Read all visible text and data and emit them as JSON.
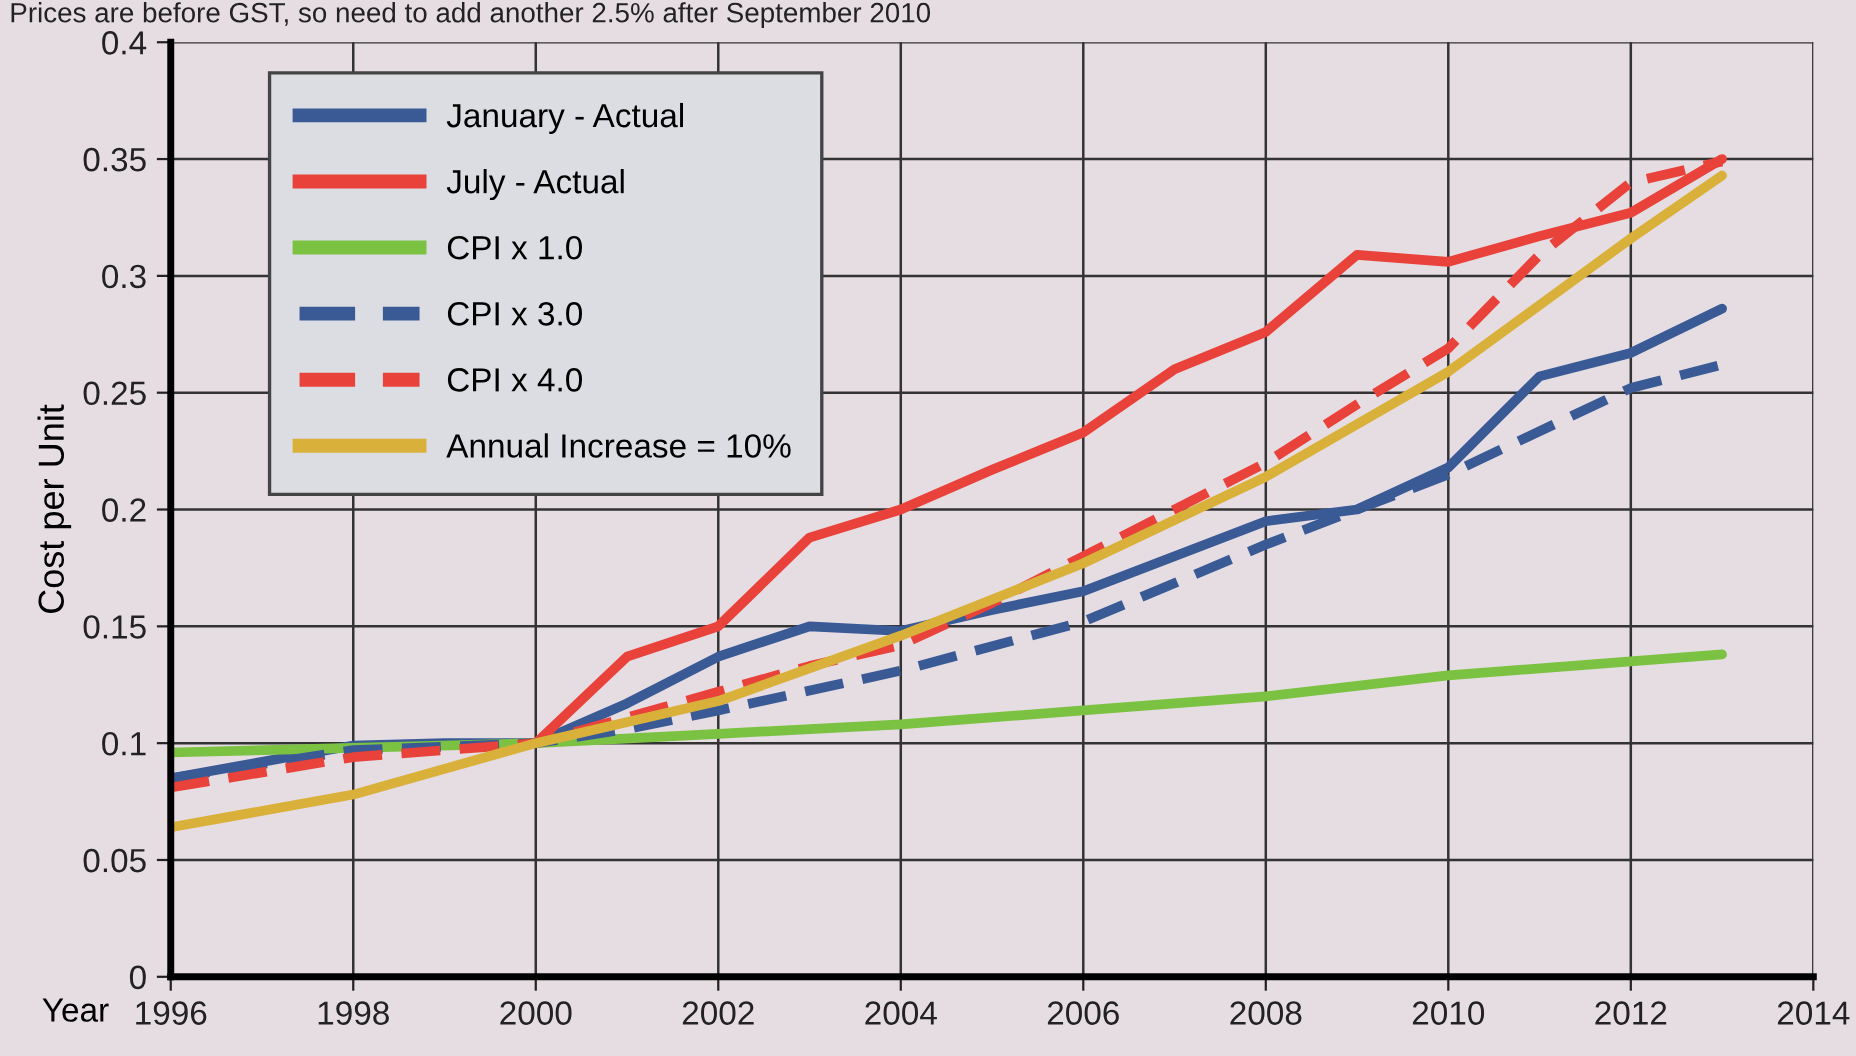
{
  "chart_data": {
    "type": "line",
    "xlabel": "Year",
    "ylabel": "Cost per Unit",
    "annotations": [
      "Prices are before GST, so need to add another 2.5% after September 2010"
    ],
    "xlim": [
      1996,
      2014
    ],
    "xticks": [
      1996,
      1998,
      2000,
      2002,
      2004,
      2006,
      2008,
      2010,
      2012,
      2014
    ],
    "ylim": [
      0,
      0.4
    ],
    "yticks": [
      0,
      0.05,
      0.1,
      0.15,
      0.2,
      0.25,
      0.3,
      0.35,
      0.4
    ],
    "grid": true,
    "legend": "top left",
    "marker": "none",
    "series": [
      {
        "name": "January - Actual",
        "color": "#3a5a95",
        "line_style": "solid",
        "x": [
          1996,
          1997,
          1998,
          1999,
          2000,
          2001,
          2002,
          2003,
          2004,
          2005,
          2006,
          2007,
          2008,
          2009,
          2010,
          2011,
          2012,
          2013
        ],
        "values": [
          0.085,
          0.092,
          0.099,
          0.1,
          0.1,
          0.117,
          0.137,
          0.15,
          0.148,
          0.157,
          0.165,
          0.18,
          0.195,
          0.2,
          0.218,
          0.257,
          0.267,
          0.286
        ]
      },
      {
        "name": "July - Actual",
        "color": "#e8423a",
        "line_style": "solid",
        "x": [
          2000,
          2001,
          2002,
          2003,
          2004,
          2005,
          2006,
          2007,
          2008,
          2009,
          2010,
          2011,
          2012,
          2013
        ],
        "values": [
          0.1,
          0.137,
          0.15,
          0.188,
          0.2,
          0.217,
          0.233,
          0.26,
          0.276,
          0.309,
          0.306,
          0.317,
          0.327,
          0.35
        ]
      },
      {
        "name": "CPI x 1.0",
        "color": "#7cc242",
        "line_style": "solid",
        "x": [
          1996,
          1998,
          2000,
          2002,
          2004,
          2006,
          2008,
          2010,
          2012,
          2013
        ],
        "values": [
          0.096,
          0.098,
          0.1,
          0.104,
          0.108,
          0.114,
          0.12,
          0.129,
          0.135,
          0.138
        ]
      },
      {
        "name": "CPI x 3.0",
        "color": "#3a5a95",
        "line_style": "dashed",
        "x": [
          1996,
          1998,
          2000,
          2001,
          2002,
          2004,
          2006,
          2008,
          2010,
          2012,
          2013
        ],
        "values": [
          0.085,
          0.097,
          0.1,
          0.106,
          0.114,
          0.131,
          0.152,
          0.185,
          0.215,
          0.252,
          0.262
        ]
      },
      {
        "name": "CPI x 4.0",
        "color": "#e8423a",
        "line_style": "dashed",
        "x": [
          1996,
          1998,
          2000,
          2002,
          2003,
          2004,
          2005,
          2006,
          2007,
          2008,
          2009,
          2010,
          2011,
          2012,
          2013
        ],
        "values": [
          0.081,
          0.094,
          0.1,
          0.122,
          0.133,
          0.142,
          0.16,
          0.18,
          0.2,
          0.22,
          0.245,
          0.269,
          0.309,
          0.34,
          0.349
        ]
      },
      {
        "name": "Annual Increase = 10%",
        "color": "#d9b13a",
        "line_style": "solid",
        "x": [
          1996,
          1998,
          2000,
          2002,
          2004,
          2006,
          2008,
          2010,
          2012,
          2013
        ],
        "values": [
          0.064,
          0.078,
          0.1,
          0.118,
          0.146,
          0.177,
          0.214,
          0.259,
          0.316,
          0.343
        ]
      }
    ]
  }
}
